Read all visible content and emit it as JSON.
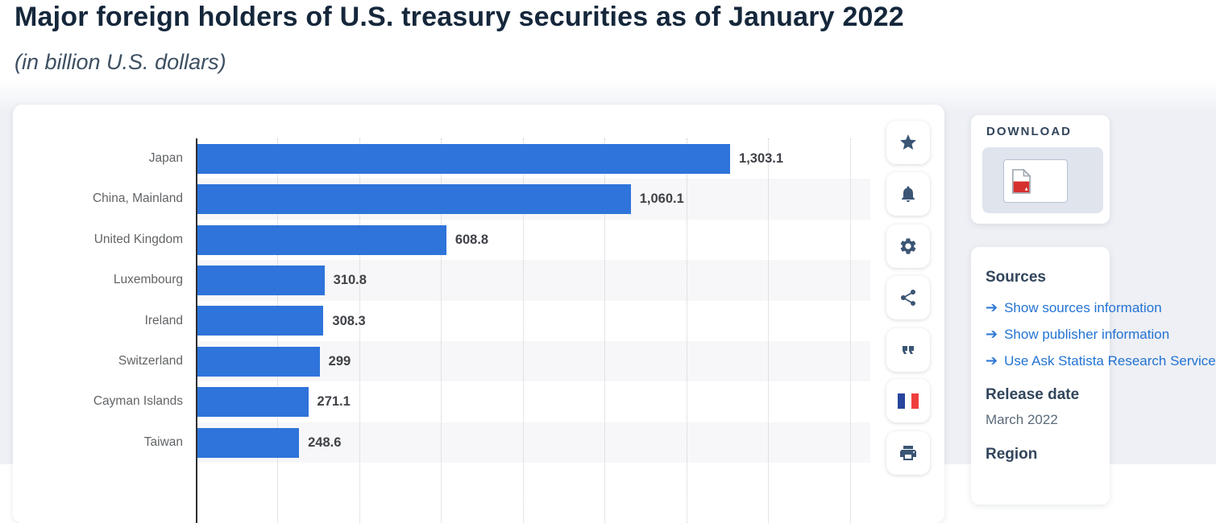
{
  "page": {
    "title": "Major foreign holders of U.S. treasury securities as of January 2022",
    "subtitle": "(in billion U.S. dollars)"
  },
  "chart_data": {
    "type": "bar",
    "orientation": "horizontal",
    "title": "Major foreign holders of U.S. treasury securities as of January 2022",
    "subtitle": "(in billion U.S. dollars)",
    "categories": [
      "Japan",
      "China, Mainland",
      "United Kingdom",
      "Luxembourg",
      "Ireland",
      "Switzerland",
      "Cayman Islands",
      "Taiwan"
    ],
    "values": [
      1303.1,
      1060.1,
      608.8,
      310.8,
      308.3,
      299,
      271.1,
      248.6
    ],
    "value_labels": [
      "1,303.1",
      "1,060.1",
      "608.8",
      "310.8",
      "308.3",
      "299",
      "271.1",
      "248.6"
    ],
    "xlabel": "",
    "ylabel": "",
    "xlim": [
      0,
      1650
    ],
    "gridline_step": 200,
    "grid": "vertical-dotted",
    "legend": "none",
    "bar_color": "#2e74da",
    "stripe_color": "#f7f7f9"
  },
  "toolbar": {
    "buttons": [
      {
        "icon": "star-icon",
        "label": "favorite"
      },
      {
        "icon": "bell-icon",
        "label": "notifications"
      },
      {
        "icon": "gear-icon",
        "label": "settings"
      },
      {
        "icon": "share-icon",
        "label": "share"
      },
      {
        "icon": "quote-icon",
        "label": "cite"
      },
      {
        "icon": "french-flag-icon",
        "label": "french-version"
      },
      {
        "icon": "printer-icon",
        "label": "print"
      }
    ]
  },
  "download_panel": {
    "heading": "DOWNLOAD",
    "format": "PDF"
  },
  "info_panel": {
    "sources_heading": "Sources",
    "links": [
      "Show sources information",
      "Show publisher information",
      "Use Ask Statista Research Service"
    ],
    "release_heading": "Release date",
    "release_value": "March 2022",
    "region_heading": "Region"
  },
  "colors": {
    "bar": "#2e74da",
    "link": "#2273d3",
    "heading": "#32455c",
    "icon": "#3b5574",
    "page_background": "#eef0f5",
    "flag_blue": "#27459e",
    "flag_red": "#ee3f3d",
    "pdf_red": "#d6302e"
  }
}
